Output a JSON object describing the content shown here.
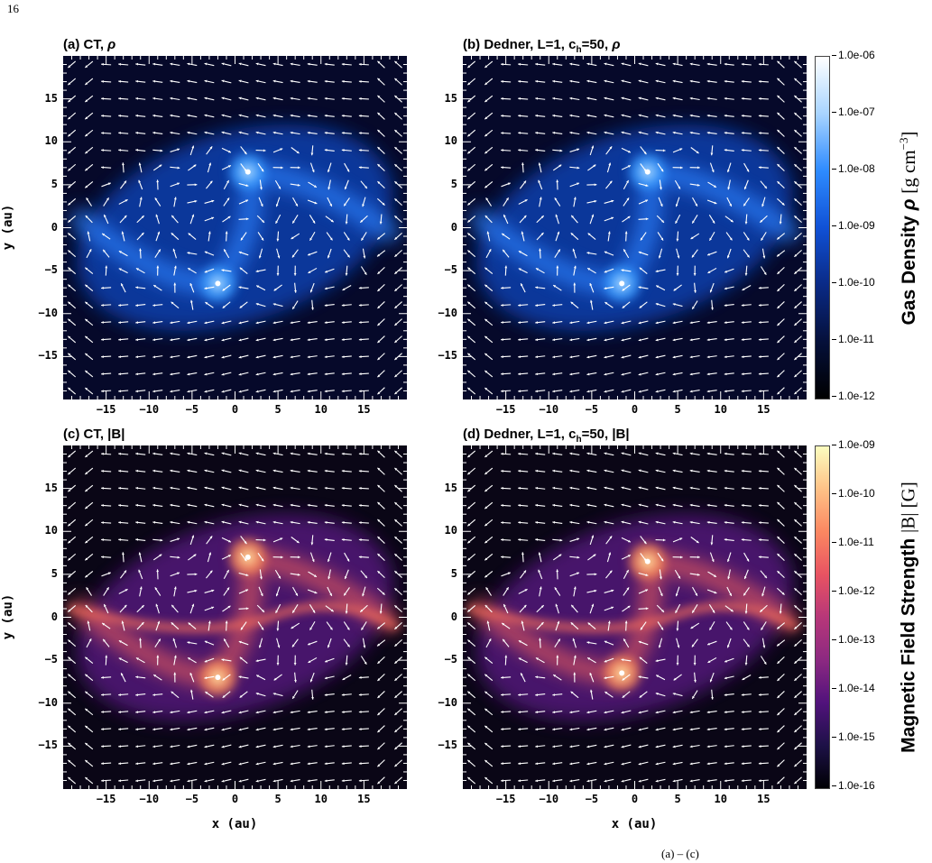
{
  "page_number": "16",
  "colorbars": {
    "density": {
      "label": "Gas Density",
      "symbol": "ρ",
      "unit_open": "[g cm",
      "unit_exp": "−3",
      "unit_close": "]",
      "ticks": [
        "1.0e-06",
        "1.0e-07",
        "1.0e-08",
        "1.0e-09",
        "1.0e-10",
        "1.0e-11",
        "1.0e-12"
      ],
      "colors": [
        "#ffffff",
        "#a8d4ff",
        "#2e8bff",
        "#1051d6",
        "#0a2a86",
        "#05103a",
        "#000000"
      ]
    },
    "magnetic": {
      "label": "Magnetic Field Strength",
      "unit": "|B| [G]",
      "ticks": [
        "1.0e-09",
        "1.0e-10",
        "1.0e-11",
        "1.0e-12",
        "1.0e-13",
        "1.0e-14",
        "1.0e-15",
        "1.0e-16"
      ],
      "colors": [
        "#fcfdbf",
        "#fec287",
        "#fb8761",
        "#e85362",
        "#b73779",
        "#8c2981",
        "#51127c",
        "#1d1147",
        "#000004"
      ]
    }
  },
  "chart_data": [
    {
      "type": "heatmap",
      "panel": "a",
      "title_main": "(a) CT, ",
      "title_symbol": "ρ",
      "quantity": "Gas Density",
      "colormap": "blue",
      "xlim": [
        -20,
        20
      ],
      "ylim": [
        -20,
        20
      ],
      "xticks": [
        -15,
        -10,
        -5,
        0,
        5,
        10,
        15
      ],
      "yticks": [
        -15,
        -10,
        -5,
        0,
        5,
        10,
        15
      ],
      "xlabel": "",
      "ylabel": "y (au)",
      "sinks": [
        [
          1.5,
          6.5
        ],
        [
          -2,
          -6.5
        ]
      ],
      "overlay": "magnetic field direction vectors"
    },
    {
      "type": "heatmap",
      "panel": "b",
      "title_main": "(b) Dedner, L=1, c",
      "title_sub": "h",
      "title_rest": "=50, ",
      "title_symbol": "ρ",
      "quantity": "Gas Density",
      "colormap": "blue",
      "xlim": [
        -20,
        20
      ],
      "ylim": [
        -20,
        20
      ],
      "xticks": [
        -15,
        -10,
        -5,
        0,
        5,
        10,
        15
      ],
      "yticks": [
        -15,
        -10,
        -5,
        0,
        5,
        10,
        15
      ],
      "xlabel": "",
      "ylabel": "",
      "sinks": [
        [
          1.5,
          6.5
        ],
        [
          -1.5,
          -6.5
        ]
      ],
      "overlay": "magnetic field direction vectors"
    },
    {
      "type": "heatmap",
      "panel": "c",
      "title_main": "(c) CT, |B|",
      "quantity": "Magnetic Field Strength",
      "colormap": "magma",
      "xlim": [
        -20,
        20
      ],
      "ylim": [
        -20,
        20
      ],
      "xticks": [
        -15,
        -10,
        -5,
        0,
        5,
        10,
        15
      ],
      "yticks": [
        -15,
        -10,
        -5,
        0,
        5,
        10,
        15
      ],
      "xlabel": "x (au)",
      "ylabel": "y (au)",
      "sinks": [
        [
          1.5,
          7
        ],
        [
          -2,
          -7
        ]
      ],
      "overlay": "magnetic field direction vectors"
    },
    {
      "type": "heatmap",
      "panel": "d",
      "title_main": "(d) Dedner, L=1, c",
      "title_sub": "h",
      "title_rest": "=50, |B|",
      "quantity": "Magnetic Field Strength",
      "colormap": "magma",
      "xlim": [
        -20,
        20
      ],
      "ylim": [
        -20,
        20
      ],
      "xticks": [
        -15,
        -10,
        -5,
        0,
        5,
        10,
        15
      ],
      "yticks": [
        -15,
        -10,
        -5,
        0,
        5,
        10,
        15
      ],
      "xlabel": "x (au)",
      "ylabel": "",
      "sinks": [
        [
          1.5,
          6.5
        ],
        [
          -1.5,
          -6.5
        ]
      ],
      "overlay": "magnetic field direction vectors"
    }
  ],
  "caption_hint": "(a) – (c)"
}
